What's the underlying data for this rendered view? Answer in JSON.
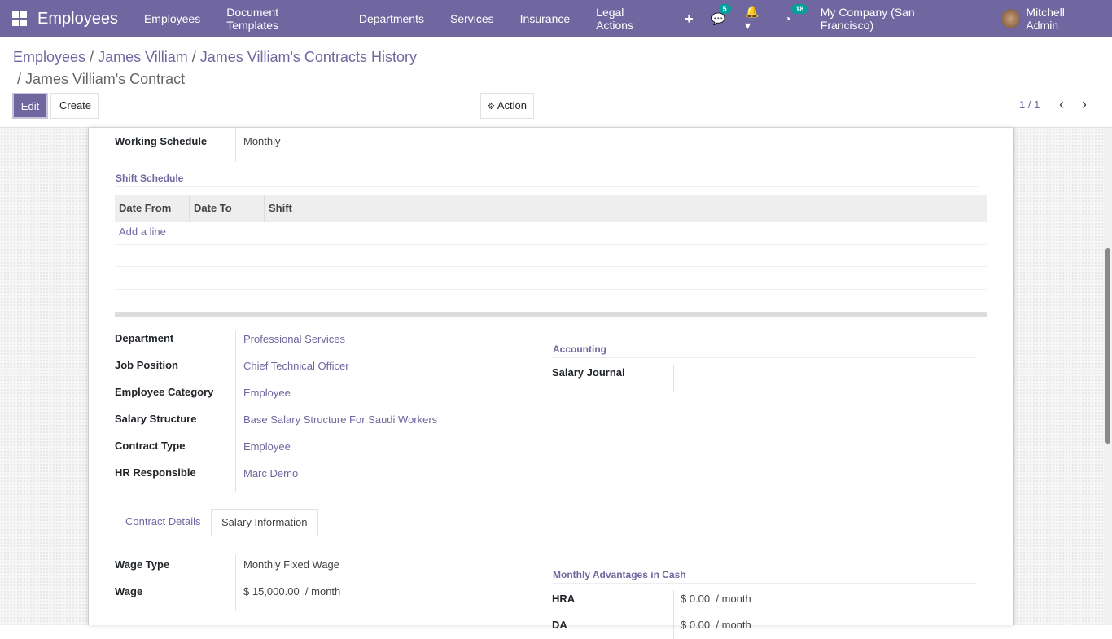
{
  "navbar": {
    "app_title": "Employees",
    "menus": [
      "Employees",
      "Document Templates",
      "Departments",
      "Services",
      "Insurance",
      "Legal Actions"
    ],
    "messages_count": "5",
    "activities_count": "18",
    "company": "My Company (San Francisco)",
    "user": "Mitchell Admin",
    "accent": "#7067a0"
  },
  "breadcrumb": {
    "items": [
      "Employees",
      "James Villiam",
      "James Villiam's Contracts History"
    ],
    "current": "James Villiam's Contract"
  },
  "toolbar": {
    "edit": "Edit",
    "create": "Create",
    "action": "Action",
    "pager": "1 / 1"
  },
  "form": {
    "working_schedule": {
      "label": "Working Schedule",
      "value": "Monthly"
    },
    "shift_schedule": {
      "title": "Shift Schedule",
      "columns": [
        "Date From",
        "Date To",
        "Shift"
      ],
      "add_line": "Add a line"
    },
    "fields": [
      {
        "label": "Department",
        "value": "Professional Services"
      },
      {
        "label": "Job Position",
        "value": "Chief Technical Officer"
      },
      {
        "label": "Employee Category",
        "value": "Employee"
      },
      {
        "label": "Salary Structure",
        "value": "Base Salary Structure For Saudi Workers"
      },
      {
        "label": "Contract Type",
        "value": "Employee"
      },
      {
        "label": "HR Responsible",
        "value": "Marc Demo"
      }
    ],
    "accounting": {
      "title": "Accounting",
      "salary_journal_label": "Salary Journal",
      "salary_journal_value": ""
    },
    "tabs": [
      {
        "label": "Contract Details",
        "active": false
      },
      {
        "label": "Salary Information",
        "active": true
      }
    ],
    "wage_type": {
      "label": "Wage Type",
      "value": "Monthly Fixed Wage"
    },
    "wage": {
      "label": "Wage",
      "value": "$ 15,000.00",
      "unit": "/ month"
    },
    "advantages": {
      "title": "Monthly Advantages in Cash",
      "items": [
        {
          "label": "HRA",
          "value": "$ 0.00",
          "unit": "/ month"
        },
        {
          "label": "DA",
          "value": "$ 0.00",
          "unit": "/ month"
        }
      ]
    }
  }
}
